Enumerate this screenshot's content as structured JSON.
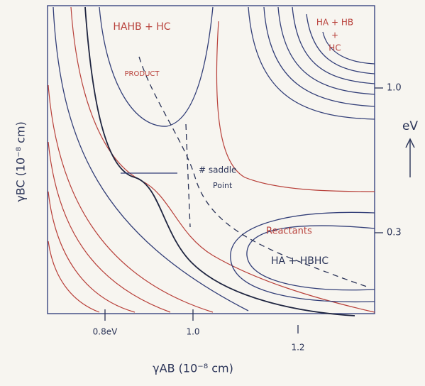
{
  "axes": {
    "x_label": "γAB (10⁻⁸ cm)",
    "y_label": "γBC (10⁻⁸ cm)",
    "x_ticks": [
      "0.8eV",
      "1.0",
      "1.2"
    ]
  },
  "energy_scale": {
    "unit": "eV",
    "levels": [
      "1.0",
      "0.3"
    ]
  },
  "regions": {
    "product_species": "HAHB + HC",
    "product_label": "PRODUCT",
    "separated_line1": "HA + HB",
    "separated_plus": "+",
    "separated_line2": "HC",
    "saddle_line1": "# saddle",
    "saddle_line2": "Point",
    "reactants_label": "Reactants",
    "reactants_species": "HA + HBHC"
  }
}
